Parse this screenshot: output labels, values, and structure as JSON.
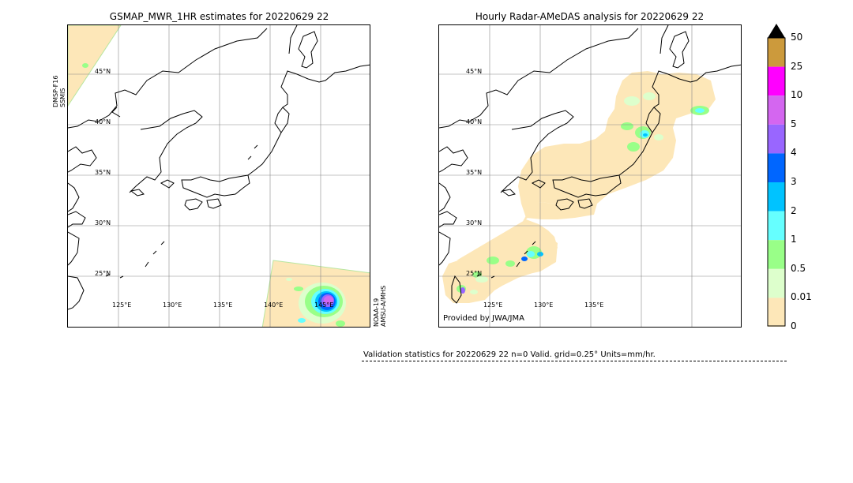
{
  "left_panel": {
    "title": "GSMAP_MWR_1HR estimates for 20220629 22",
    "side_left": [
      "DMSP-F16",
      "SSMIS"
    ],
    "side_right": [
      "NOAA-19",
      "AMSU-A/MHS"
    ]
  },
  "right_panel": {
    "title": "Hourly Radar-AMeDAS analysis for 20220629 22",
    "provided_by": "Provided by JWA/JMA"
  },
  "lat_labels": [
    "45°N",
    "40°N",
    "35°N",
    "30°N",
    "25°N"
  ],
  "lon_labels_left": [
    "125°E",
    "130°E",
    "135°E",
    "140°E",
    "145°E"
  ],
  "lon_labels_right": [
    "125°E",
    "130°E",
    "135°E"
  ],
  "colorbar": {
    "labels": [
      "50",
      "25",
      "10",
      "5",
      "4",
      "3",
      "2",
      "1",
      "0.5",
      "0.01",
      "0"
    ],
    "colors": [
      "#cc9a3c",
      "#ff00ff",
      "#d466f0",
      "#9966ff",
      "#0066ff",
      "#00c3ff",
      "#66ffff",
      "#99ff88",
      "#ddffcc",
      "#fde7b8"
    ],
    "extend_color": "#000000"
  },
  "validation": {
    "text": "Validation statistics for 20220629 22  n=0 Valid. grid=0.25° Units=mm/hr."
  }
}
